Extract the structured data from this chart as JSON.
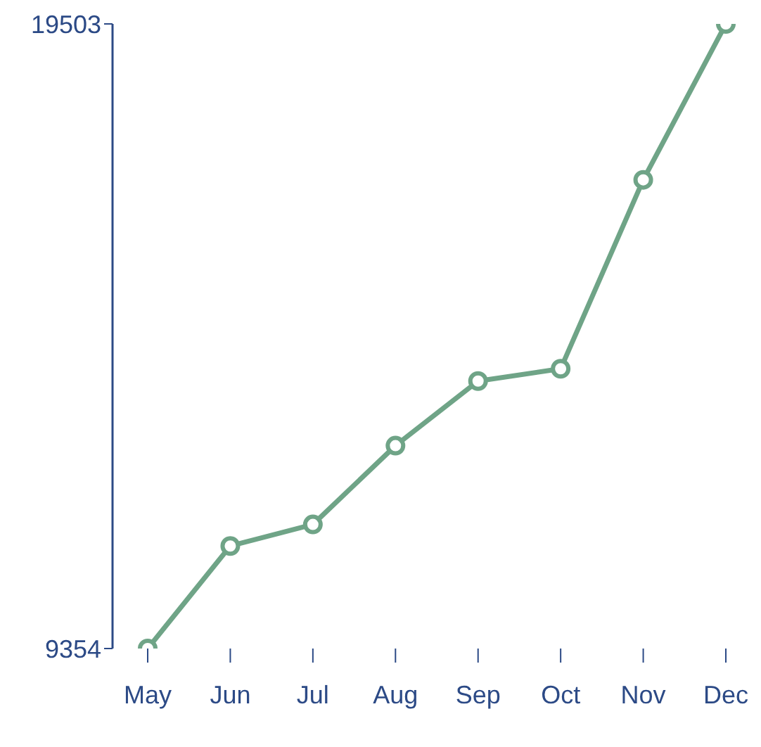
{
  "chart_data": {
    "type": "line",
    "categories": [
      "May",
      "Jun",
      "Jul",
      "Aug",
      "Sep",
      "Oct",
      "Nov",
      "Dec"
    ],
    "series": [
      {
        "color": "#6fa487",
        "values": [
          9354,
          11020,
          11370,
          12650,
          13700,
          13900,
          16970,
          19503
        ]
      }
    ],
    "ylim": [
      9354,
      19503
    ],
    "yticks": [
      9354,
      19503
    ],
    "marker": "circle",
    "line_style": "solid",
    "grid": false,
    "legend": false
  }
}
